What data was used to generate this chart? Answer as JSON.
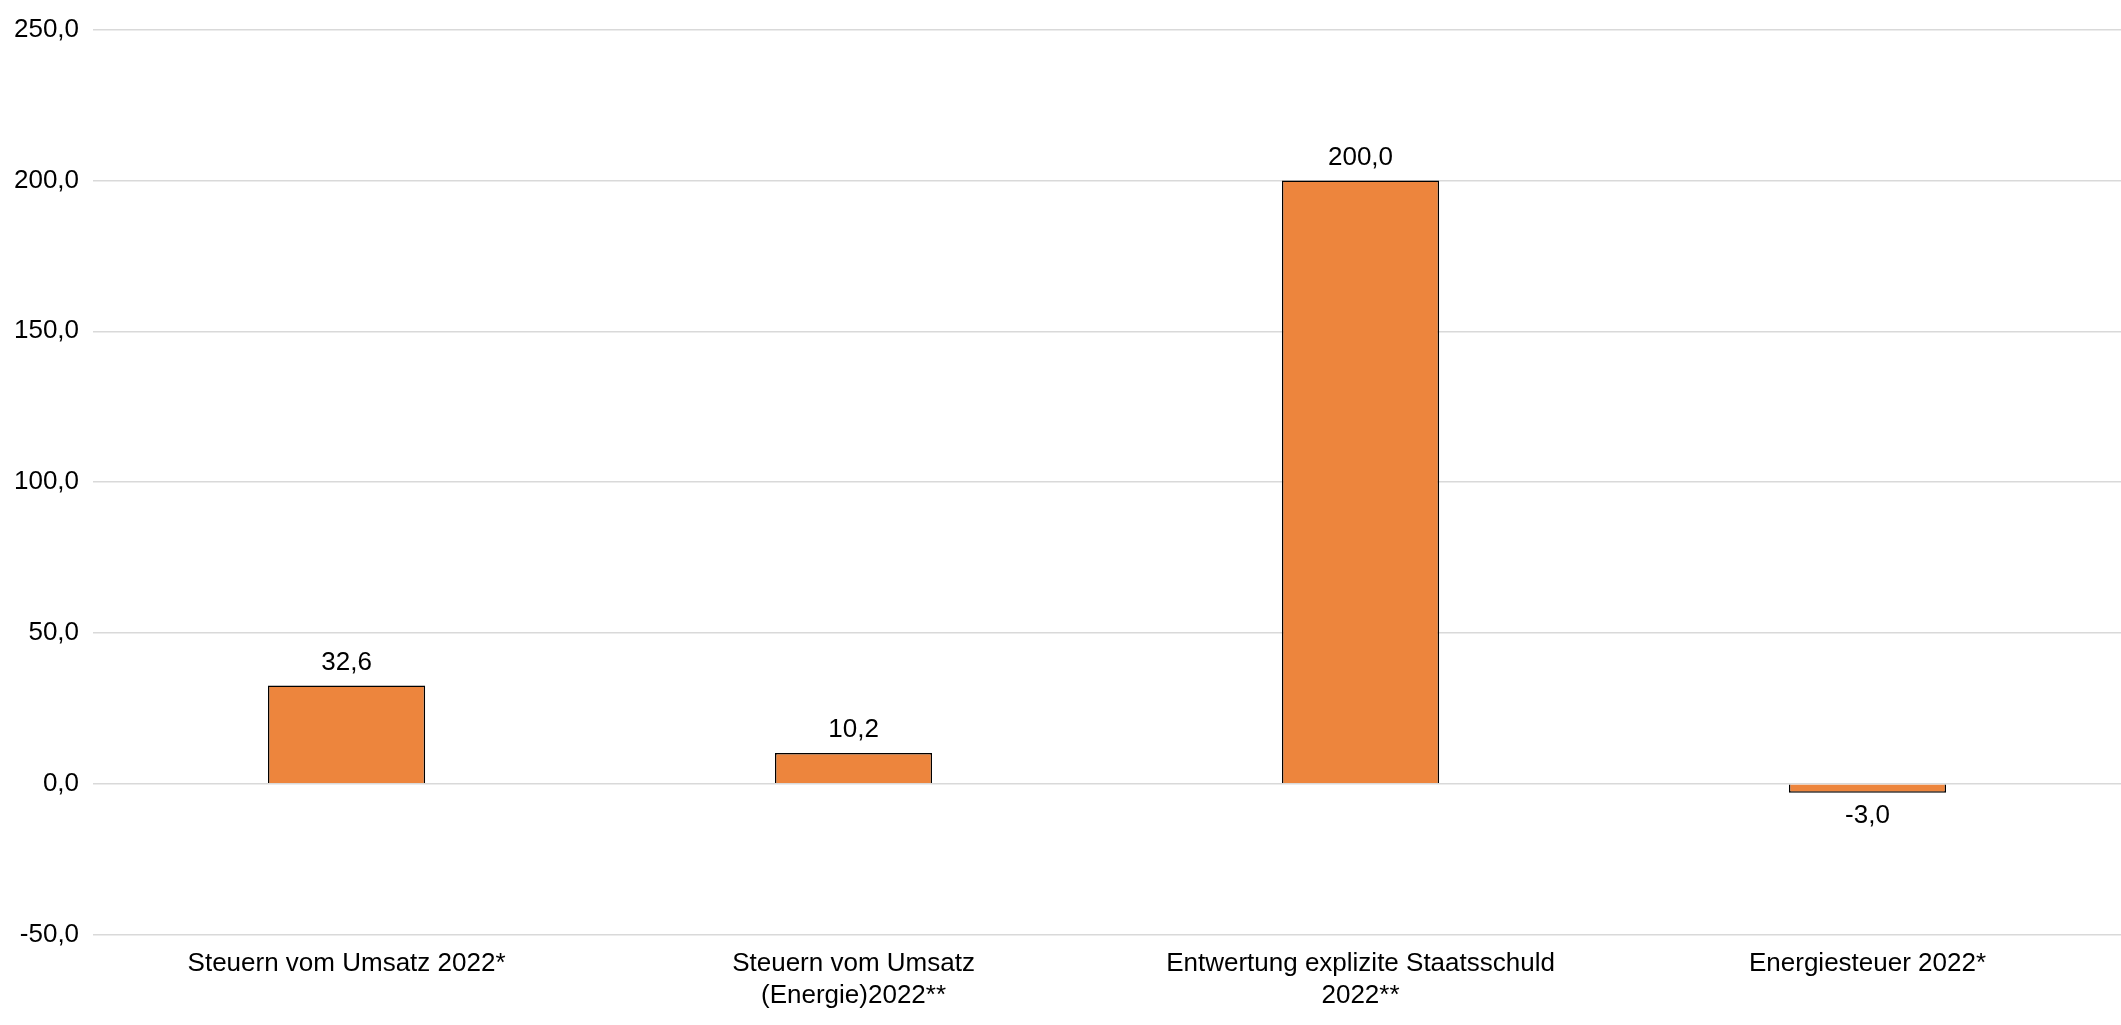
{
  "chart_data": {
    "type": "bar",
    "categories": [
      "Steuern vom Umsatz 2022*",
      "Steuern vom Umsatz (Energie)2022**",
      "Entwertung explizite Staatsschuld 2022**",
      "Energiesteuer 2022*"
    ],
    "values": [
      32.6,
      10.2,
      200.0,
      -3.0
    ],
    "value_labels": [
      "32,6",
      "10,2",
      "200,0",
      "-3,0"
    ],
    "color": "#ed853d",
    "ylim": [
      -50,
      250
    ],
    "yticks": [
      {
        "value": -50,
        "label": "-50,0"
      },
      {
        "value": 0,
        "label": "0,0"
      },
      {
        "value": 50,
        "label": "50,0"
      },
      {
        "value": 100,
        "label": "100,0"
      },
      {
        "value": 150,
        "label": "150,0"
      },
      {
        "value": 200,
        "label": "200,0"
      },
      {
        "value": 250,
        "label": "250,0"
      }
    ],
    "grid": "y",
    "legend": false
  }
}
